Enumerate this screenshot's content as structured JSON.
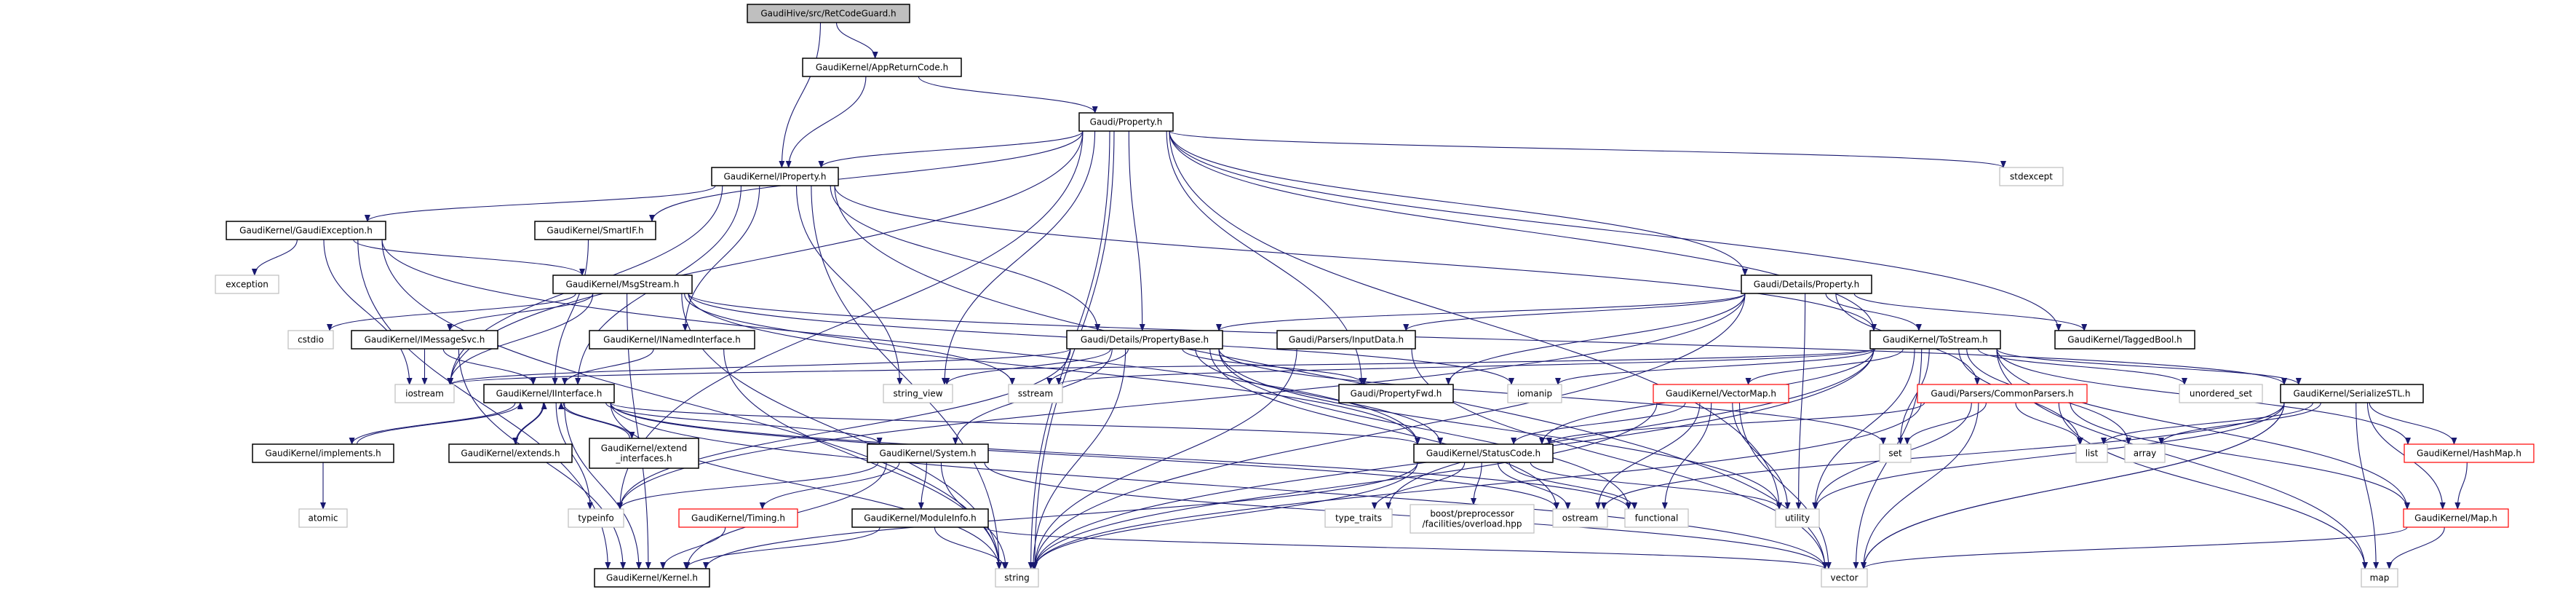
{
  "graph": {
    "nodes": [
      {
        "id": "hive",
        "label": "GaudiHive/src/RetCodeGuard.h",
        "style": "root"
      },
      {
        "id": "app",
        "label": "GaudiKernel/AppReturnCode.h",
        "style": "doc"
      },
      {
        "id": "prop",
        "label": "Gaudi/Property.h",
        "style": "doc"
      },
      {
        "id": "iprop",
        "label": "GaudiKernel/IProperty.h",
        "style": "doc"
      },
      {
        "id": "stdexcept",
        "label": "stdexcept",
        "style": "ext"
      },
      {
        "id": "gexc",
        "label": "GaudiKernel/GaudiException.h",
        "style": "doc"
      },
      {
        "id": "smartif",
        "label": "GaudiKernel/SmartIF.h",
        "style": "doc"
      },
      {
        "id": "exception",
        "label": "exception",
        "style": "ext"
      },
      {
        "id": "msg",
        "label": "GaudiKernel/MsgStream.h",
        "style": "doc"
      },
      {
        "id": "detprop",
        "label": "Gaudi/Details/Property.h",
        "style": "doc"
      },
      {
        "id": "cstdio",
        "label": "cstdio",
        "style": "ext"
      },
      {
        "id": "imsg",
        "label": "GaudiKernel/IMessageSvc.h",
        "style": "doc"
      },
      {
        "id": "inamed",
        "label": "GaudiKernel/INamedInterface.h",
        "style": "doc"
      },
      {
        "id": "pbase",
        "label": "Gaudi/Details/PropertyBase.h",
        "style": "doc"
      },
      {
        "id": "input",
        "label": "Gaudi/Parsers/InputData.h",
        "style": "doc"
      },
      {
        "id": "tostream",
        "label": "GaudiKernel/ToStream.h",
        "style": "doc"
      },
      {
        "id": "tagged",
        "label": "GaudiKernel/TaggedBool.h",
        "style": "doc"
      },
      {
        "id": "iostream",
        "label": "iostream",
        "style": "ext"
      },
      {
        "id": "iint",
        "label": "GaudiKernel/IInterface.h",
        "style": "doc"
      },
      {
        "id": "sview",
        "label": "string_view",
        "style": "ext"
      },
      {
        "id": "sstream",
        "label": "sstream",
        "style": "ext"
      },
      {
        "id": "pfwd",
        "label": "Gaudi/PropertyFwd.h",
        "style": "doc"
      },
      {
        "id": "iomanip",
        "label": "iomanip",
        "style": "ext"
      },
      {
        "id": "vmap",
        "label": "GaudiKernel/VectorMap.h",
        "style": "red"
      },
      {
        "id": "cparse",
        "label": "Gaudi/Parsers/CommonParsers.h",
        "style": "red"
      },
      {
        "id": "uset",
        "label": "unordered_set",
        "style": "ext"
      },
      {
        "id": "sstl",
        "label": "GaudiKernel/SerializeSTL.h",
        "style": "doc"
      },
      {
        "id": "impl",
        "label": "GaudiKernel/implements.h",
        "style": "doc"
      },
      {
        "id": "extends",
        "label": "GaudiKernel/extends.h",
        "style": "doc"
      },
      {
        "id": "extint",
        "label": "GaudiKernel/extend\n_interfaces.h",
        "style": "doc"
      },
      {
        "id": "system",
        "label": "GaudiKernel/System.h",
        "style": "doc"
      },
      {
        "id": "status",
        "label": "GaudiKernel/StatusCode.h",
        "style": "doc"
      },
      {
        "id": "set",
        "label": "set",
        "style": "ext"
      },
      {
        "id": "list",
        "label": "list",
        "style": "ext"
      },
      {
        "id": "array",
        "label": "array",
        "style": "ext"
      },
      {
        "id": "hashmap",
        "label": "GaudiKernel/HashMap.h",
        "style": "red"
      },
      {
        "id": "atomic",
        "label": "atomic",
        "style": "ext"
      },
      {
        "id": "typeinfo",
        "label": "typeinfo",
        "style": "ext"
      },
      {
        "id": "timing",
        "label": "GaudiKernel/Timing.h",
        "style": "red"
      },
      {
        "id": "modinfo",
        "label": "GaudiKernel/ModuleInfo.h",
        "style": "doc"
      },
      {
        "id": "typetraits",
        "label": "type_traits",
        "style": "ext"
      },
      {
        "id": "boost",
        "label": "boost/preprocessor\n/facilities/overload.hpp",
        "style": "ext"
      },
      {
        "id": "ostream",
        "label": "ostream",
        "style": "ext"
      },
      {
        "id": "functional",
        "label": "functional",
        "style": "ext"
      },
      {
        "id": "utility",
        "label": "utility",
        "style": "ext"
      },
      {
        "id": "maph",
        "label": "GaudiKernel/Map.h",
        "style": "red"
      },
      {
        "id": "kernel",
        "label": "GaudiKernel/Kernel.h",
        "style": "doc"
      },
      {
        "id": "string",
        "label": "string",
        "style": "ext"
      },
      {
        "id": "vector",
        "label": "vector",
        "style": "ext"
      },
      {
        "id": "map",
        "label": "map",
        "style": "ext"
      }
    ],
    "edges": [
      [
        "hive",
        "iprop"
      ],
      [
        "hive",
        "app"
      ],
      [
        "app",
        "iprop"
      ],
      [
        "app",
        "prop"
      ],
      [
        "prop",
        "iprop"
      ],
      [
        "prop",
        "smartif"
      ],
      [
        "prop",
        "detprop"
      ],
      [
        "prop",
        "pbase"
      ],
      [
        "prop",
        "pfwd"
      ],
      [
        "prop",
        "tostream"
      ],
      [
        "prop",
        "tagged"
      ],
      [
        "prop",
        "stdexcept"
      ],
      [
        "prop",
        "string"
      ],
      [
        "prop",
        "sview"
      ],
      [
        "prop",
        "typeinfo"
      ],
      [
        "prop",
        "utility"
      ],
      [
        "prop",
        "iostream"
      ],
      [
        "prop",
        "string"
      ],
      [
        "iprop",
        "gexc"
      ],
      [
        "iprop",
        "iint"
      ],
      [
        "iprop",
        "inamed"
      ],
      [
        "iprop",
        "pbase"
      ],
      [
        "iprop",
        "tostream"
      ],
      [
        "iprop",
        "string"
      ],
      [
        "iprop",
        "iostream"
      ],
      [
        "iprop",
        "sview"
      ],
      [
        "iprop",
        "vector"
      ],
      [
        "gexc",
        "exception"
      ],
      [
        "gexc",
        "msg"
      ],
      [
        "gexc",
        "iostream"
      ],
      [
        "gexc",
        "status"
      ],
      [
        "gexc",
        "string"
      ],
      [
        "gexc",
        "kernel"
      ],
      [
        "smartif",
        "iint"
      ],
      [
        "msg",
        "cstdio"
      ],
      [
        "msg",
        "imsg"
      ],
      [
        "msg",
        "iomanip"
      ],
      [
        "msg",
        "iostream"
      ],
      [
        "msg",
        "sstream"
      ],
      [
        "msg",
        "string"
      ],
      [
        "msg",
        "sstl"
      ],
      [
        "msg",
        "status"
      ],
      [
        "msg",
        "kernel"
      ],
      [
        "imsg",
        "iostream"
      ],
      [
        "imsg",
        "iint"
      ],
      [
        "imsg",
        "kernel"
      ],
      [
        "inamed",
        "iint"
      ],
      [
        "inamed",
        "string"
      ],
      [
        "iint",
        "impl"
      ],
      [
        "iint",
        "extends"
      ],
      [
        "iint",
        "extint"
      ],
      [
        "iint",
        "system"
      ],
      [
        "iint",
        "status"
      ],
      [
        "iint",
        "typeinfo"
      ],
      [
        "iint",
        "kernel"
      ],
      [
        "iint",
        "ostream"
      ],
      [
        "iint",
        "type_traits"
      ],
      [
        "iint",
        "string"
      ],
      [
        "iint",
        "vector"
      ],
      [
        "iint",
        "functional"
      ],
      [
        "impl",
        "iint"
      ],
      [
        "impl",
        "atomic"
      ],
      [
        "extends",
        "iint"
      ],
      [
        "extint",
        "iint"
      ],
      [
        "system",
        "timing"
      ],
      [
        "system",
        "modinfo"
      ],
      [
        "system",
        "kernel"
      ],
      [
        "system",
        "typeinfo"
      ],
      [
        "system",
        "string"
      ],
      [
        "system",
        "vector"
      ],
      [
        "timing",
        "kernel"
      ],
      [
        "modinfo",
        "kernel"
      ],
      [
        "modinfo",
        "string"
      ],
      [
        "modinfo",
        "vector"
      ],
      [
        "pbase",
        "sview"
      ],
      [
        "pbase",
        "sstream"
      ],
      [
        "pbase",
        "pfwd"
      ],
      [
        "pbase",
        "status"
      ],
      [
        "pbase",
        "system"
      ],
      [
        "pbase",
        "string"
      ],
      [
        "pbase",
        "typeinfo"
      ],
      [
        "pbase",
        "iostream"
      ],
      [
        "pbase",
        "utility"
      ],
      [
        "pbase",
        "set"
      ],
      [
        "pbase",
        "functional"
      ],
      [
        "pbase",
        "ostream"
      ],
      [
        "input",
        "string"
      ],
      [
        "input",
        "vector"
      ],
      [
        "detprop",
        "pbase"
      ],
      [
        "detprop",
        "input"
      ],
      [
        "detprop",
        "pfwd"
      ],
      [
        "detprop",
        "tostream"
      ],
      [
        "detprop",
        "tagged"
      ],
      [
        "detprop",
        "cparse"
      ],
      [
        "detprop",
        "utility"
      ],
      [
        "detprop",
        "string"
      ],
      [
        "detprop",
        "typeinfo"
      ],
      [
        "tostream",
        "vmap"
      ],
      [
        "tostream",
        "sstl"
      ],
      [
        "tostream",
        "hashmap"
      ],
      [
        "tostream",
        "maph"
      ],
      [
        "tostream",
        "set"
      ],
      [
        "tostream",
        "list"
      ],
      [
        "tostream",
        "array"
      ],
      [
        "tostream",
        "uset"
      ],
      [
        "tostream",
        "iomanip"
      ],
      [
        "tostream",
        "sstream"
      ],
      [
        "tostream",
        "iostream"
      ],
      [
        "tostream",
        "string"
      ],
      [
        "tostream",
        "vector"
      ],
      [
        "tostream",
        "map"
      ],
      [
        "tostream",
        "typetraits"
      ],
      [
        "tostream",
        "utility"
      ],
      [
        "tostream",
        "status"
      ],
      [
        "vmap",
        "status"
      ],
      [
        "vmap",
        "ostream"
      ],
      [
        "vmap",
        "utility"
      ],
      [
        "vmap",
        "functional"
      ],
      [
        "vmap",
        "vector"
      ],
      [
        "vmap",
        "string"
      ],
      [
        "cparse",
        "status"
      ],
      [
        "cparse",
        "set"
      ],
      [
        "cparse",
        "list"
      ],
      [
        "cparse",
        "vector"
      ],
      [
        "cparse",
        "map"
      ],
      [
        "cparse",
        "string"
      ],
      [
        "cparse",
        "maph"
      ],
      [
        "cparse",
        "utility"
      ],
      [
        "sstl",
        "list"
      ],
      [
        "sstl",
        "array"
      ],
      [
        "sstl",
        "hashmap"
      ],
      [
        "sstl",
        "maph"
      ],
      [
        "sstl",
        "map"
      ],
      [
        "sstl",
        "vector"
      ],
      [
        "sstl",
        "ostream"
      ],
      [
        "sstl",
        "utility"
      ],
      [
        "sstl",
        "vector"
      ],
      [
        "hashmap",
        "maph"
      ],
      [
        "maph",
        "map"
      ],
      [
        "maph",
        "vector"
      ],
      [
        "status",
        "typetraits"
      ],
      [
        "status",
        "boost"
      ],
      [
        "status",
        "ostream"
      ],
      [
        "status",
        "functional"
      ],
      [
        "status",
        "utility"
      ],
      [
        "status",
        "kernel"
      ],
      [
        "status",
        "string"
      ]
    ]
  }
}
